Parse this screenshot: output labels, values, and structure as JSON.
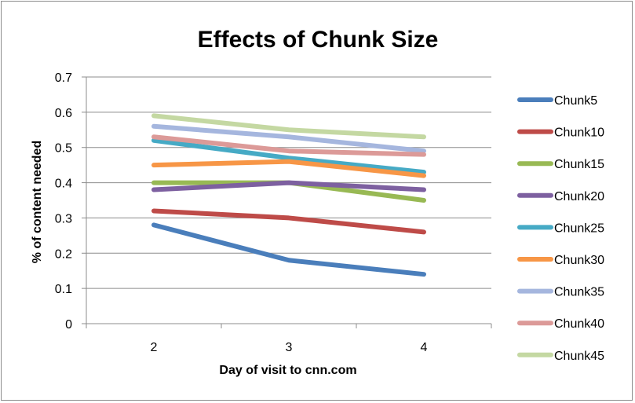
{
  "chart_data": {
    "type": "line",
    "title": "Effects of Chunk Size",
    "xlabel": "Day of visit to cnn.com",
    "ylabel": "% of content needed",
    "categories": [
      "2",
      "3",
      "4"
    ],
    "ylim": [
      0,
      0.7
    ],
    "yticks": [
      "0",
      "0.1",
      "0.2",
      "0.3",
      "0.4",
      "0.5",
      "0.6",
      "0.7"
    ],
    "grid": true,
    "legend": "right",
    "series": [
      {
        "name": "Chunk5",
        "color": "#4a7ebb",
        "values": [
          0.28,
          0.18,
          0.14
        ]
      },
      {
        "name": "Chunk10",
        "color": "#be4b48",
        "values": [
          0.32,
          0.3,
          0.26
        ]
      },
      {
        "name": "Chunk15",
        "color": "#98b954",
        "values": [
          0.4,
          0.4,
          0.35
        ]
      },
      {
        "name": "Chunk20",
        "color": "#7d60a0",
        "values": [
          0.38,
          0.4,
          0.38
        ]
      },
      {
        "name": "Chunk25",
        "color": "#46aac5",
        "values": [
          0.52,
          0.47,
          0.43
        ]
      },
      {
        "name": "Chunk30",
        "color": "#f79646",
        "values": [
          0.45,
          0.46,
          0.42
        ]
      },
      {
        "name": "Chunk35",
        "color": "#a5b6de",
        "values": [
          0.56,
          0.53,
          0.49
        ]
      },
      {
        "name": "Chunk40",
        "color": "#dc9a98",
        "values": [
          0.53,
          0.49,
          0.48
        ]
      },
      {
        "name": "Chunk45",
        "color": "#c4d8a2",
        "values": [
          0.59,
          0.55,
          0.53
        ]
      }
    ]
  }
}
